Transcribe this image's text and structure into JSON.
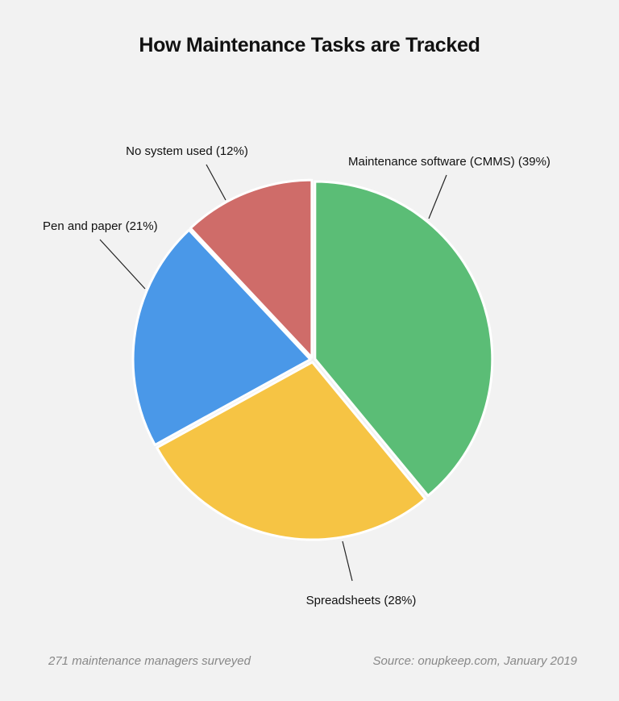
{
  "title": "How Maintenance Tasks are Tracked",
  "chart_data": {
    "type": "pie",
    "title": "How Maintenance Tasks are Tracked",
    "start_angle_deg": 0,
    "direction": "clockwise",
    "slices": [
      {
        "label": "Maintenance software (CMMS) (39%)",
        "value": 39,
        "color": "#5bbd76"
      },
      {
        "label": "Spreadsheets (28%)",
        "value": 28,
        "color": "#f6c444"
      },
      {
        "label": "Pen and paper (21%)",
        "value": 21,
        "color": "#4a98e8"
      },
      {
        "label": "No system used (12%)",
        "value": 12,
        "color": "#cf6c69"
      }
    ]
  },
  "footer": {
    "left": "271 maintenance managers surveyed",
    "right": "Source: onupkeep.com, January 2019"
  }
}
